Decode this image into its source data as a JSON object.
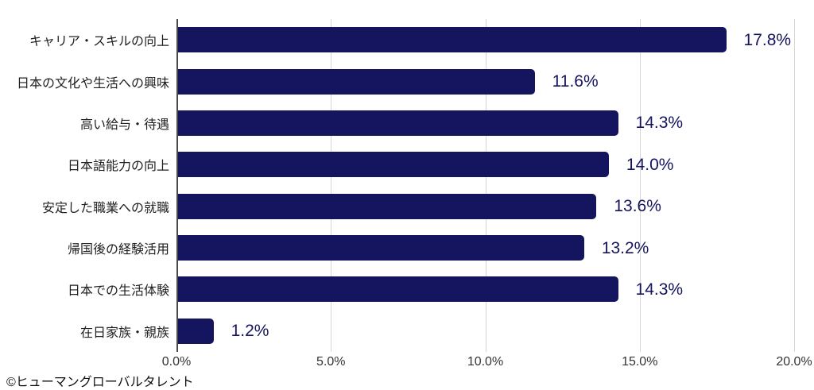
{
  "chart_data": {
    "type": "bar",
    "orientation": "horizontal",
    "title": "",
    "xlabel": "",
    "ylabel": "",
    "xlim": [
      0,
      20
    ],
    "grid": true,
    "legend": "none",
    "categories": [
      "キャリア・スキルの向上",
      "日本の文化や生活への興味",
      "高い給与・待遇",
      "日本語能力の向上",
      "安定した職業への就職",
      "帰国後の経験活用",
      "日本での生活体験",
      "在日家族・親族"
    ],
    "values": [
      17.8,
      11.6,
      14.3,
      14.0,
      13.6,
      13.2,
      14.3,
      1.2
    ],
    "value_labels": [
      "17.8%",
      "11.6%",
      "14.3%",
      "14.0%",
      "13.6%",
      "13.2%",
      "14.3%",
      "1.2%"
    ],
    "x_ticks": [
      {
        "label": "0.0%",
        "value": 0
      },
      {
        "label": "5.0%",
        "value": 5
      },
      {
        "label": "10.0%",
        "value": 10
      },
      {
        "label": "15.0%",
        "value": 15
      },
      {
        "label": "20.0%",
        "value": 20
      }
    ],
    "colors": {
      "bar": "#14145f",
      "value_label": "#14145f",
      "category_label": "#1f1f1f",
      "tick_label": "#333333",
      "gridline": "#d6d6d6",
      "axis_line": "#4a4a4a"
    }
  },
  "footer": {
    "credit": "©ヒューマングローバルタレント"
  }
}
